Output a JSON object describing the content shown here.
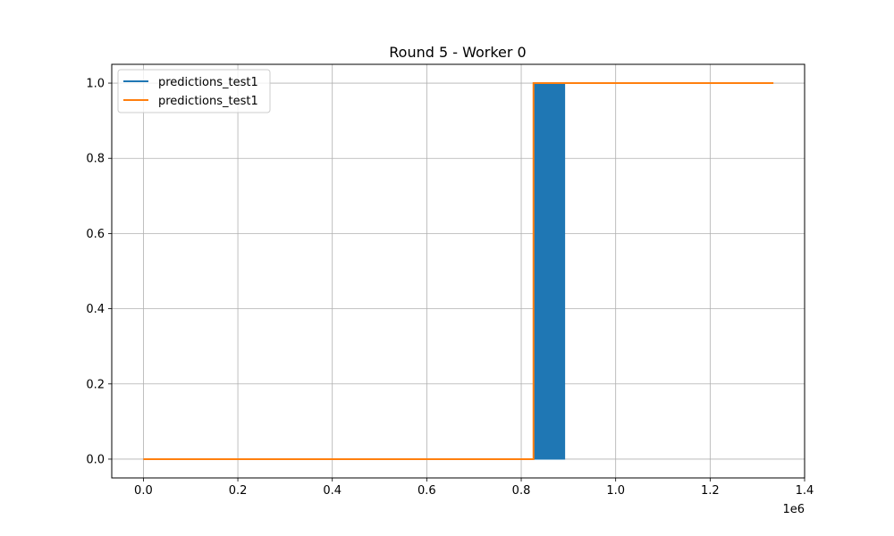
{
  "chart_data": {
    "type": "line",
    "title": "Round 5 - Worker 0",
    "xlabel": "",
    "ylabel": "",
    "x_offset_text": "1e6",
    "xlim": [
      -0.067,
      1.4
    ],
    "ylim": [
      -0.05,
      1.05
    ],
    "x_ticks": [
      0.0,
      0.2,
      0.4,
      0.6,
      0.8,
      1.0,
      1.2,
      1.4
    ],
    "x_tick_labels": [
      "0.0",
      "0.2",
      "0.4",
      "0.6",
      "0.8",
      "1.0",
      "1.2",
      "1.4"
    ],
    "y_ticks": [
      0.0,
      0.2,
      0.4,
      0.6,
      0.8,
      1.0
    ],
    "y_tick_labels": [
      "0.0",
      "0.2",
      "0.4",
      "0.6",
      "0.8",
      "1.0"
    ],
    "grid": true,
    "legend_position": "top-left",
    "series": [
      {
        "name": "predictions_test1",
        "color": "#1f77b4",
        "kind": "filled-step",
        "points": [
          [
            0.827,
            0
          ],
          [
            0.827,
            1
          ],
          [
            0.892,
            1
          ],
          [
            0.892,
            0
          ]
        ]
      },
      {
        "name": "predictions_test1",
        "color": "#ff7f0e",
        "kind": "step",
        "points": [
          [
            0.0,
            0
          ],
          [
            0.826,
            0
          ],
          [
            0.826,
            1
          ],
          [
            1.334,
            1
          ]
        ]
      }
    ]
  }
}
